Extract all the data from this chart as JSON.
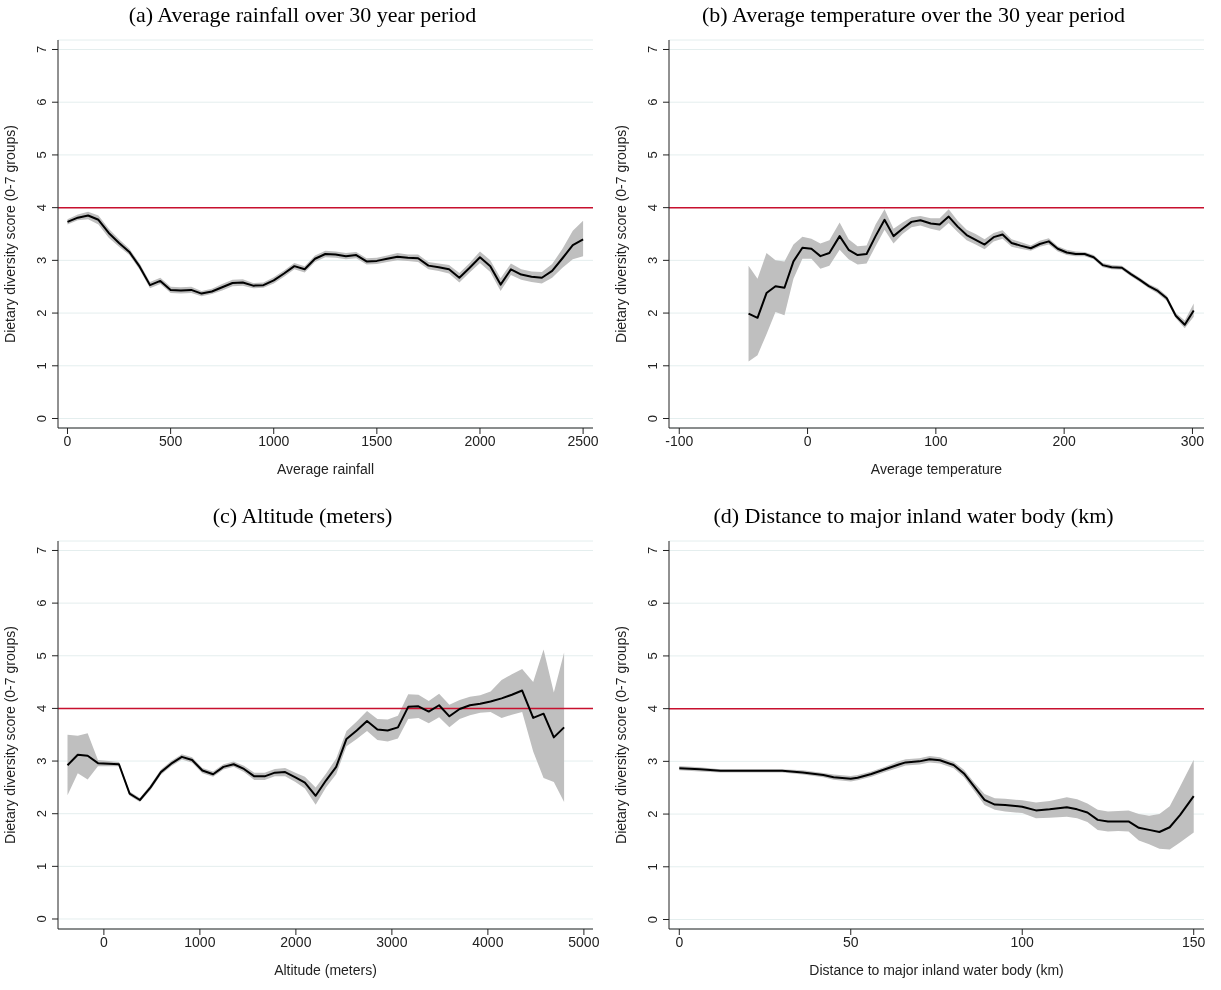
{
  "chart_data": [
    {
      "type": "line",
      "title": "(a) Average rainfall over 30 year period",
      "xlabel": "Average rainfall",
      "ylabel": "Dietary diversity score (0-7 groups)",
      "xlim": [
        -46,
        2548
      ],
      "xticks": [
        0,
        500,
        1000,
        1500,
        2000,
        2500
      ],
      "ylim": [
        -0.18,
        7.18
      ],
      "yticks": [
        0,
        1,
        2,
        3,
        4,
        5,
        6,
        7
      ],
      "grid": "y",
      "line_style": "solid",
      "marker": "none",
      "legend": false,
      "ref_lines": [
        {
          "axis": "y",
          "value": 4,
          "color": "#c8102e"
        }
      ],
      "series": [
        {
          "color": "#000000",
          "x": [
            0,
            50,
            100,
            150,
            200,
            250,
            300,
            350,
            400,
            450,
            500,
            550,
            600,
            650,
            700,
            750,
            800,
            850,
            900,
            950,
            1000,
            1050,
            1100,
            1150,
            1200,
            1250,
            1300,
            1350,
            1400,
            1450,
            1500,
            1550,
            1600,
            1650,
            1700,
            1750,
            1800,
            1850,
            1900,
            1950,
            2000,
            2050,
            2100,
            2150,
            2200,
            2250,
            2300,
            2350,
            2400,
            2450,
            2500
          ],
          "values": [
            3.73,
            3.81,
            3.85,
            3.77,
            3.52,
            3.33,
            3.16,
            2.88,
            2.53,
            2.61,
            2.44,
            2.43,
            2.44,
            2.37,
            2.41,
            2.49,
            2.57,
            2.58,
            2.52,
            2.53,
            2.62,
            2.75,
            2.89,
            2.83,
            3.03,
            3.12,
            3.11,
            3.08,
            3.1,
            2.98,
            2.99,
            3.03,
            3.07,
            3.05,
            3.04,
            2.9,
            2.87,
            2.83,
            2.67,
            2.86,
            3.06,
            2.89,
            2.54,
            2.83,
            2.73,
            2.69,
            2.67,
            2.8,
            3.04,
            3.29,
            3.4
          ],
          "lower": [
            3.68,
            3.76,
            3.78,
            3.68,
            3.43,
            3.26,
            3.1,
            2.82,
            2.47,
            2.55,
            2.38,
            2.37,
            2.38,
            2.32,
            2.36,
            2.43,
            2.51,
            2.52,
            2.47,
            2.48,
            2.56,
            2.69,
            2.83,
            2.77,
            2.97,
            3.06,
            3.05,
            3.02,
            3.04,
            2.92,
            2.93,
            2.97,
            3.0,
            2.99,
            2.97,
            2.83,
            2.8,
            2.75,
            2.58,
            2.77,
            2.95,
            2.78,
            2.42,
            2.72,
            2.63,
            2.59,
            2.56,
            2.67,
            2.86,
            3.02,
            3.08
          ],
          "upper": [
            3.78,
            3.87,
            3.92,
            3.85,
            3.6,
            3.4,
            3.22,
            2.94,
            2.59,
            2.67,
            2.5,
            2.49,
            2.5,
            2.42,
            2.46,
            2.55,
            2.63,
            2.64,
            2.57,
            2.58,
            2.68,
            2.81,
            2.95,
            2.89,
            3.09,
            3.18,
            3.17,
            3.14,
            3.16,
            3.04,
            3.05,
            3.09,
            3.14,
            3.11,
            3.11,
            2.97,
            2.94,
            2.91,
            2.76,
            2.95,
            3.17,
            3.0,
            2.66,
            2.94,
            2.83,
            2.79,
            2.78,
            2.93,
            3.22,
            3.56,
            3.75
          ]
        }
      ]
    },
    {
      "type": "line",
      "title": "(b) Average temperature over the 30 year period",
      "xlabel": "Average temperature",
      "ylabel": "Dietary diversity score (0-7 groups)",
      "xlim": [
        -108,
        309
      ],
      "xticks": [
        -100,
        0,
        100,
        200,
        300
      ],
      "ylim": [
        -0.18,
        7.18
      ],
      "yticks": [
        0,
        1,
        2,
        3,
        4,
        5,
        6,
        7
      ],
      "grid": "y",
      "line_style": "solid",
      "marker": "none",
      "legend": false,
      "ref_lines": [
        {
          "axis": "y",
          "value": 4,
          "color": "#c8102e"
        }
      ],
      "series": [
        {
          "color": "#000000",
          "x": [
            -46,
            -39,
            -32,
            -25,
            -18,
            -11,
            -4,
            3,
            10,
            17,
            25,
            32,
            39,
            46,
            53,
            60,
            67,
            74,
            81,
            88,
            96,
            103,
            110,
            117,
            124,
            131,
            138,
            145,
            152,
            159,
            166,
            174,
            181,
            188,
            195,
            202,
            209,
            216,
            223,
            230,
            237,
            245,
            252,
            259,
            266,
            273,
            280,
            287,
            294,
            301
          ],
          "values": [
            1.99,
            1.91,
            2.38,
            2.51,
            2.48,
            2.98,
            3.24,
            3.22,
            3.08,
            3.14,
            3.46,
            3.2,
            3.1,
            3.12,
            3.46,
            3.77,
            3.46,
            3.6,
            3.73,
            3.76,
            3.7,
            3.68,
            3.83,
            3.64,
            3.48,
            3.39,
            3.3,
            3.44,
            3.49,
            3.33,
            3.28,
            3.23,
            3.31,
            3.36,
            3.22,
            3.15,
            3.12,
            3.12,
            3.06,
            2.91,
            2.87,
            2.86,
            2.74,
            2.63,
            2.51,
            2.42,
            2.28,
            1.95,
            1.78,
            2.05
          ],
          "lower": [
            1.08,
            1.2,
            1.6,
            2.02,
            1.96,
            2.65,
            3.03,
            3.03,
            2.84,
            2.9,
            3.2,
            3.02,
            2.92,
            2.94,
            3.27,
            3.58,
            3.32,
            3.5,
            3.63,
            3.66,
            3.6,
            3.56,
            3.71,
            3.54,
            3.38,
            3.3,
            3.21,
            3.36,
            3.41,
            3.26,
            3.22,
            3.18,
            3.26,
            3.3,
            3.17,
            3.1,
            3.08,
            3.08,
            3.02,
            2.87,
            2.83,
            2.82,
            2.7,
            2.59,
            2.47,
            2.37,
            2.23,
            1.9,
            1.71,
            1.93
          ],
          "upper": [
            2.9,
            2.65,
            3.14,
            3.0,
            2.98,
            3.3,
            3.45,
            3.41,
            3.32,
            3.38,
            3.72,
            3.4,
            3.27,
            3.28,
            3.68,
            3.97,
            3.6,
            3.72,
            3.82,
            3.84,
            3.8,
            3.8,
            3.97,
            3.75,
            3.58,
            3.5,
            3.4,
            3.52,
            3.57,
            3.4,
            3.35,
            3.28,
            3.37,
            3.42,
            3.27,
            3.2,
            3.17,
            3.16,
            3.1,
            2.95,
            2.91,
            2.9,
            2.78,
            2.67,
            2.55,
            2.47,
            2.33,
            2.0,
            1.86,
            2.18
          ]
        }
      ]
    },
    {
      "type": "line",
      "title": "(c) Altitude (meters)",
      "xlabel": "Altitude (meters)",
      "ylabel": "Dietary diversity score (0-7 groups)",
      "xlim": [
        -478,
        5095
      ],
      "xticks": [
        0,
        1000,
        2000,
        3000,
        4000,
        5000
      ],
      "ylim": [
        -0.19,
        7.18
      ],
      "yticks": [
        0,
        1,
        2,
        3,
        4,
        5,
        6,
        7
      ],
      "grid": "y",
      "line_style": "solid",
      "marker": "none",
      "legend": false,
      "ref_lines": [
        {
          "axis": "y",
          "value": 4,
          "color": "#c8102e"
        }
      ],
      "series": [
        {
          "color": "#000000",
          "x": [
            -379,
            -272,
            -169,
            -62,
            49,
            157,
            268,
            375,
            486,
            594,
            701,
            812,
            919,
            1026,
            1138,
            1245,
            1352,
            1459,
            1567,
            1674,
            1781,
            1888,
            1995,
            2094,
            2206,
            2313,
            2420,
            2527,
            2634,
            2741,
            2849,
            2956,
            3063,
            3170,
            3277,
            3384,
            3492,
            3599,
            3706,
            3813,
            3920,
            4028,
            4143,
            4250,
            4357,
            4472,
            4580,
            4687,
            4794
          ],
          "values": [
            2.92,
            3.12,
            3.1,
            2.96,
            2.95,
            2.94,
            2.38,
            2.26,
            2.5,
            2.79,
            2.95,
            3.08,
            3.02,
            2.82,
            2.75,
            2.89,
            2.94,
            2.85,
            2.71,
            2.71,
            2.78,
            2.79,
            2.69,
            2.59,
            2.34,
            2.63,
            2.89,
            3.42,
            3.58,
            3.76,
            3.6,
            3.58,
            3.64,
            4.03,
            4.04,
            3.94,
            4.06,
            3.85,
            3.99,
            4.06,
            4.09,
            4.13,
            4.19,
            4.26,
            4.34,
            3.82,
            3.9,
            3.45,
            3.64
          ],
          "lower": [
            2.35,
            2.77,
            2.65,
            2.9,
            2.9,
            2.9,
            2.34,
            2.22,
            2.45,
            2.74,
            2.9,
            3.03,
            2.97,
            2.77,
            2.7,
            2.84,
            2.89,
            2.79,
            2.64,
            2.64,
            2.71,
            2.71,
            2.6,
            2.48,
            2.17,
            2.5,
            2.75,
            3.28,
            3.42,
            3.57,
            3.4,
            3.37,
            3.43,
            3.8,
            3.82,
            3.72,
            3.83,
            3.64,
            3.8,
            3.87,
            3.92,
            3.93,
            3.82,
            3.88,
            3.93,
            3.18,
            2.68,
            2.6,
            2.22
          ],
          "upper": [
            3.5,
            3.48,
            3.53,
            3.02,
            3.0,
            2.98,
            2.42,
            2.3,
            2.55,
            2.84,
            3.0,
            3.13,
            3.07,
            2.87,
            2.8,
            2.94,
            2.99,
            2.91,
            2.78,
            2.78,
            2.85,
            2.87,
            2.78,
            2.7,
            2.5,
            2.76,
            3.05,
            3.57,
            3.75,
            3.95,
            3.8,
            3.79,
            3.86,
            4.27,
            4.26,
            4.14,
            4.28,
            4.07,
            4.16,
            4.22,
            4.25,
            4.32,
            4.54,
            4.65,
            4.75,
            4.5,
            5.12,
            4.3,
            5.06
          ]
        }
      ]
    },
    {
      "type": "line",
      "title": "(d) Distance to major inland water body (km)",
      "xlabel": "Distance to major inland water body (km)",
      "ylabel": "Dietary diversity score (0-7 groups)",
      "xlim": [
        -3,
        153
      ],
      "xticks": [
        0,
        50,
        100,
        150
      ],
      "ylim": [
        -0.18,
        7.18
      ],
      "yticks": [
        0,
        1,
        2,
        3,
        4,
        5,
        6,
        7
      ],
      "grid": "y",
      "line_style": "solid",
      "marker": "none",
      "legend": false,
      "ref_lines": [
        {
          "axis": "y",
          "value": 4,
          "color": "#c8102e"
        }
      ],
      "series": [
        {
          "color": "#000000",
          "x": [
            0,
            6,
            12,
            18,
            24,
            30,
            36,
            42,
            45,
            50,
            52,
            56,
            60,
            64,
            66,
            70,
            73,
            76,
            80,
            83,
            86,
            89,
            92,
            95,
            100,
            104,
            108,
            113,
            116,
            119,
            122,
            125,
            128,
            131,
            134,
            137,
            140,
            143,
            146,
            150
          ],
          "values": [
            2.87,
            2.85,
            2.82,
            2.82,
            2.82,
            2.82,
            2.79,
            2.74,
            2.7,
            2.67,
            2.69,
            2.76,
            2.85,
            2.94,
            2.98,
            3.0,
            3.04,
            3.02,
            2.93,
            2.77,
            2.52,
            2.27,
            2.18,
            2.17,
            2.14,
            2.07,
            2.09,
            2.13,
            2.09,
            2.03,
            1.89,
            1.86,
            1.86,
            1.86,
            1.74,
            1.7,
            1.66,
            1.75,
            1.98,
            2.34
          ],
          "lower": [
            2.83,
            2.81,
            2.79,
            2.79,
            2.79,
            2.79,
            2.75,
            2.7,
            2.65,
            2.62,
            2.64,
            2.71,
            2.8,
            2.88,
            2.92,
            2.94,
            2.98,
            2.96,
            2.87,
            2.7,
            2.44,
            2.17,
            2.08,
            2.05,
            2.02,
            1.92,
            1.93,
            1.95,
            1.92,
            1.85,
            1.7,
            1.67,
            1.68,
            1.67,
            1.5,
            1.43,
            1.34,
            1.33,
            1.46,
            1.65
          ],
          "upper": [
            2.91,
            2.89,
            2.85,
            2.85,
            2.85,
            2.85,
            2.83,
            2.78,
            2.75,
            2.72,
            2.74,
            2.81,
            2.9,
            3.0,
            3.04,
            3.06,
            3.1,
            3.08,
            2.99,
            2.84,
            2.6,
            2.38,
            2.3,
            2.29,
            2.26,
            2.22,
            2.25,
            2.32,
            2.28,
            2.2,
            2.08,
            2.05,
            2.06,
            2.07,
            2.0,
            1.97,
            2.0,
            2.15,
            2.52,
            3.03
          ]
        }
      ]
    }
  ]
}
